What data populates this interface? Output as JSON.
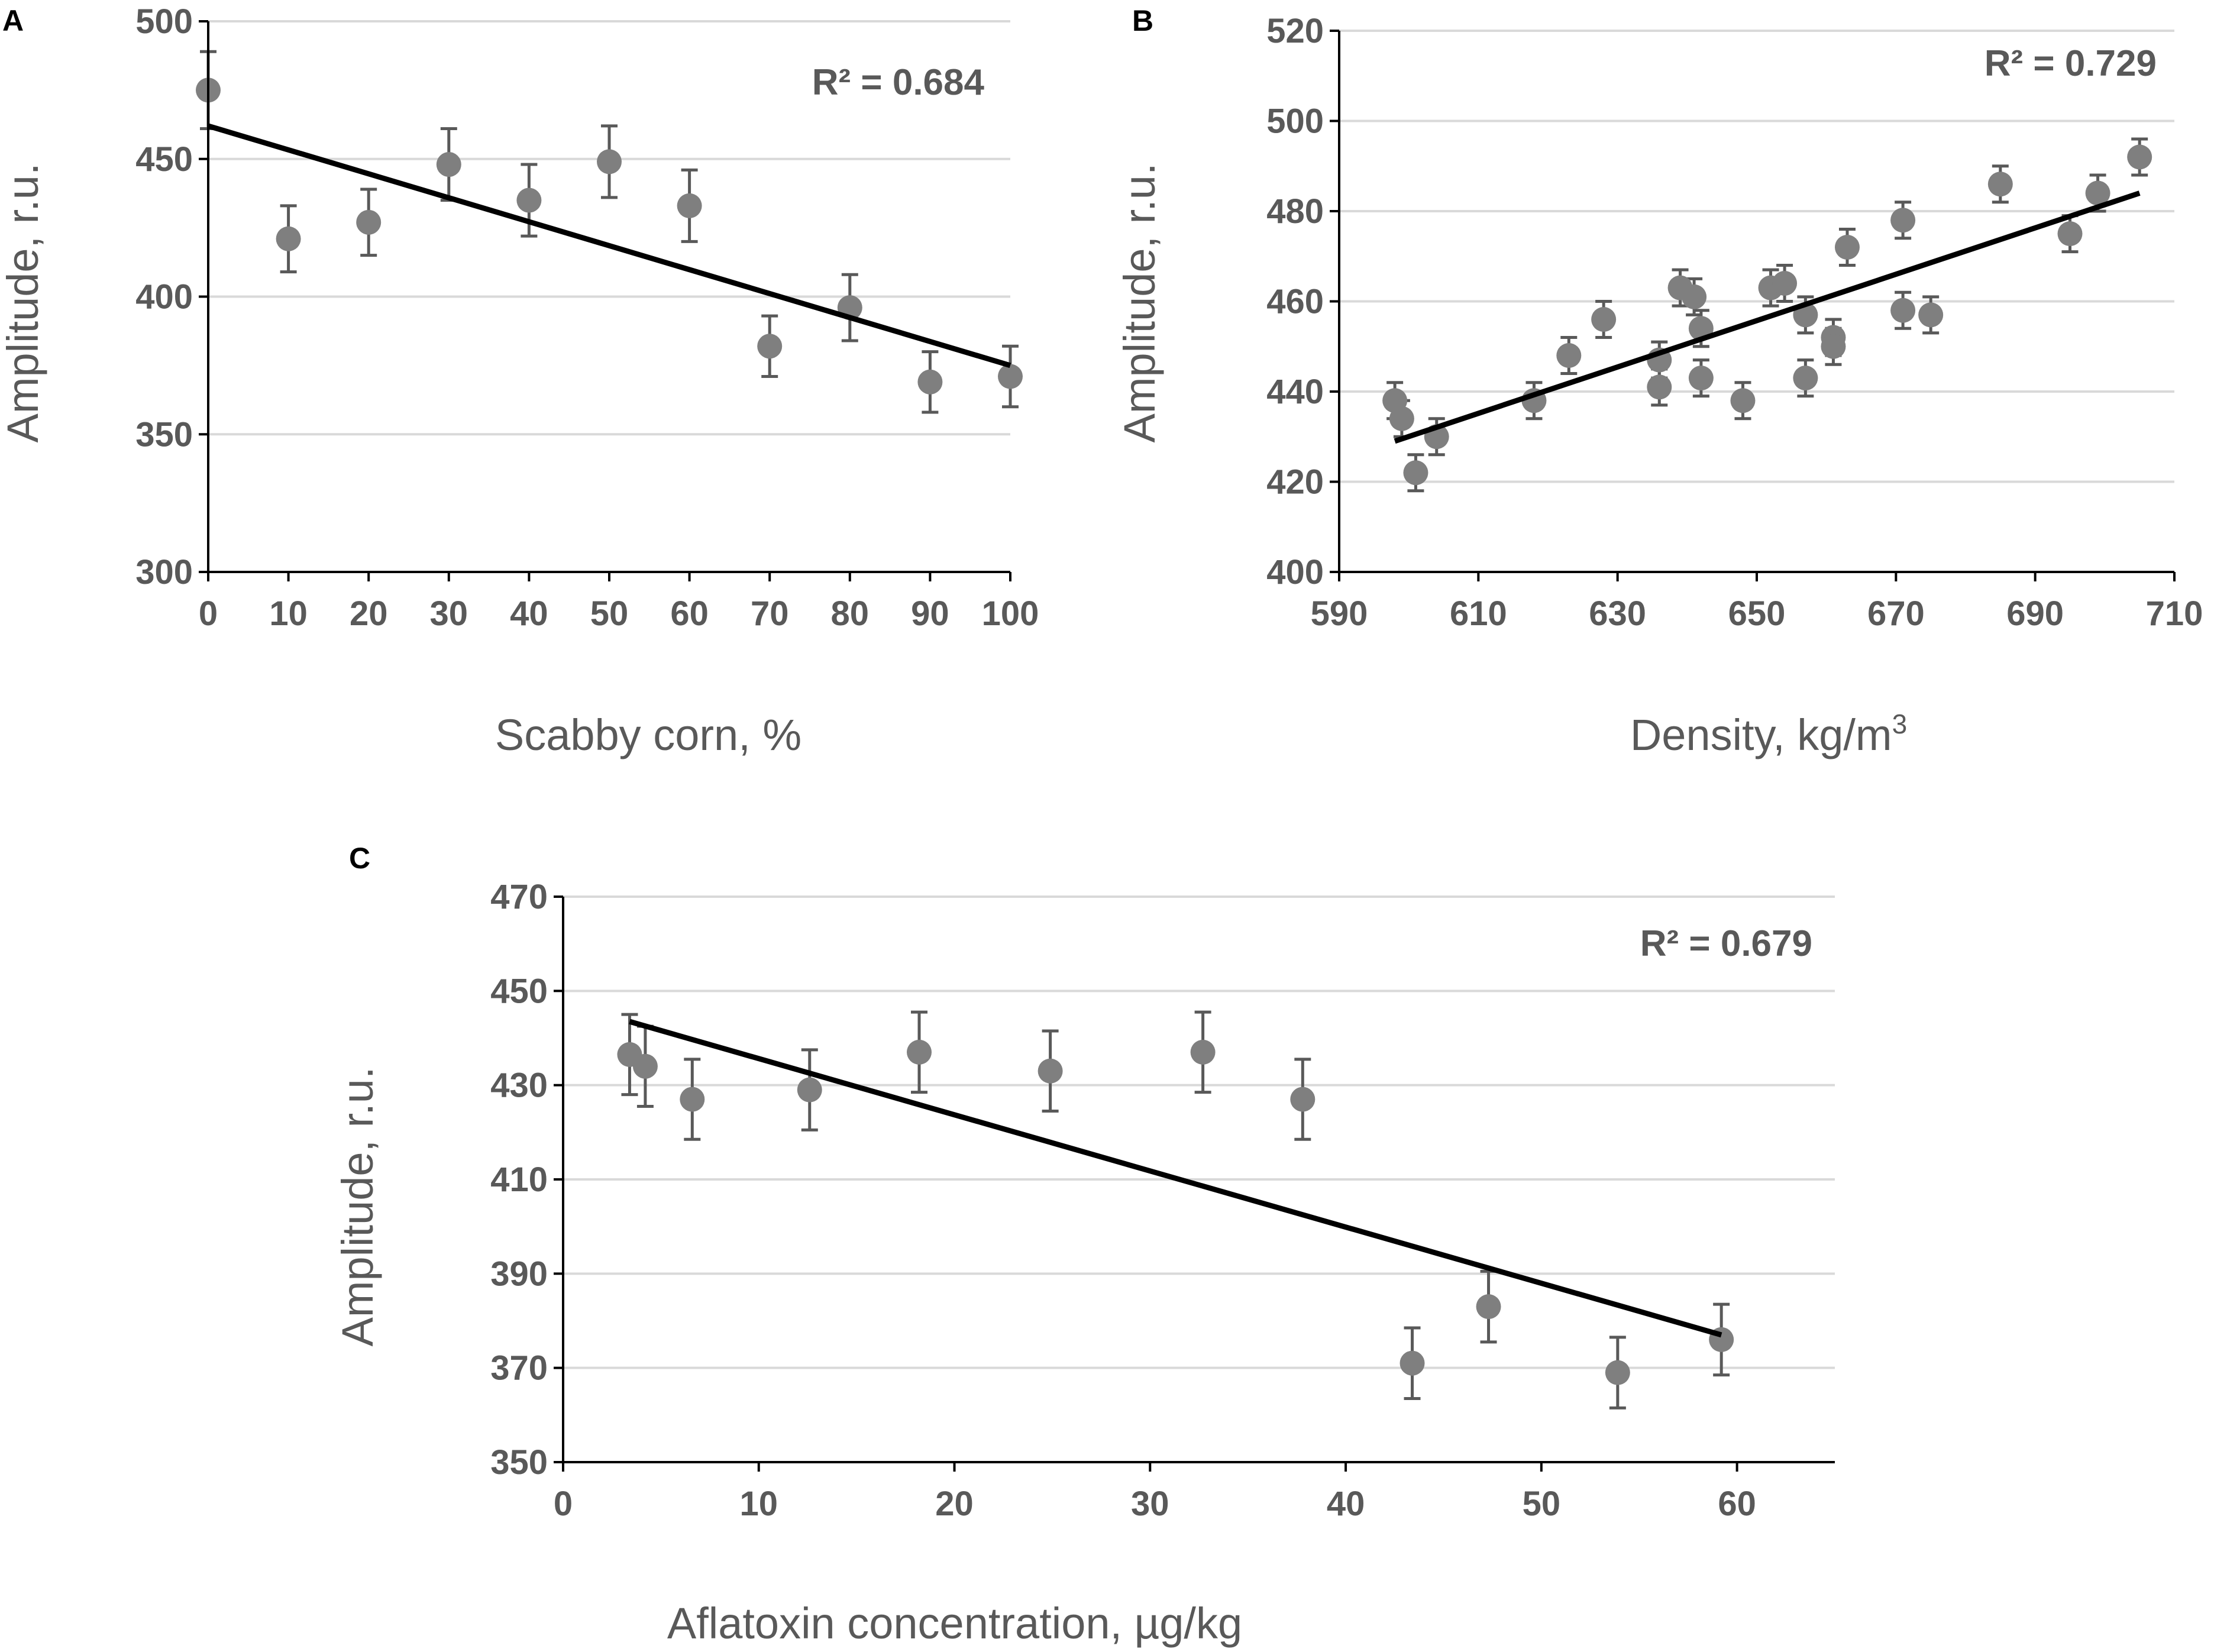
{
  "figure": {
    "colors": {
      "marker": "#7f7f7f",
      "error_bar": "#595959",
      "trendline": "#000000",
      "grid": "#d9d9d9",
      "text": "#595959"
    }
  },
  "chart_data": [
    {
      "id": "A",
      "panel_label": "A",
      "type": "scatter",
      "xlabel": "Scabby corn, %",
      "ylabel": "Amplitude, r.u.",
      "xlim": [
        0,
        100
      ],
      "ylim": [
        300,
        500
      ],
      "xticks": [
        "0",
        "10",
        "20",
        "30",
        "40",
        "50",
        "60",
        "70",
        "80",
        "90",
        "100"
      ],
      "yticks": [
        "300",
        "350",
        "400",
        "450",
        "500"
      ],
      "annotation": "R² = 0.684",
      "points": [
        {
          "x": 0,
          "y": 475,
          "err": 14
        },
        {
          "x": 10,
          "y": 421,
          "err": 12
        },
        {
          "x": 20,
          "y": 427,
          "err": 12
        },
        {
          "x": 30,
          "y": 448,
          "err": 13
        },
        {
          "x": 40,
          "y": 435,
          "err": 13
        },
        {
          "x": 50,
          "y": 449,
          "err": 13
        },
        {
          "x": 60,
          "y": 433,
          "err": 13
        },
        {
          "x": 70,
          "y": 382,
          "err": 11
        },
        {
          "x": 80,
          "y": 396,
          "err": 12
        },
        {
          "x": 90,
          "y": 369,
          "err": 11
        },
        {
          "x": 100,
          "y": 371,
          "err": 11
        }
      ],
      "trendline": {
        "x": [
          0,
          100
        ],
        "y": [
          462,
          375
        ]
      }
    },
    {
      "id": "B",
      "panel_label": "B",
      "type": "scatter",
      "xlabel": "Density, kg/m",
      "xlabel_sup": "3",
      "ylabel": "Amplitude, r.u.",
      "xlim": [
        590,
        710
      ],
      "ylim": [
        400,
        520
      ],
      "xticks": [
        "590",
        "610",
        "630",
        "650",
        "670",
        "690",
        "710"
      ],
      "yticks": [
        "400",
        "420",
        "440",
        "460",
        "480",
        "500",
        "520"
      ],
      "annotation": "R² = 0.729",
      "points": [
        {
          "x": 598,
          "y": 438,
          "err": 4
        },
        {
          "x": 599,
          "y": 434,
          "err": 4
        },
        {
          "x": 601,
          "y": 422,
          "err": 4
        },
        {
          "x": 604,
          "y": 430,
          "err": 4
        },
        {
          "x": 618,
          "y": 438,
          "err": 4
        },
        {
          "x": 623,
          "y": 448,
          "err": 4
        },
        {
          "x": 628,
          "y": 456,
          "err": 4
        },
        {
          "x": 636,
          "y": 447,
          "err": 4
        },
        {
          "x": 636,
          "y": 441,
          "err": 4
        },
        {
          "x": 639,
          "y": 463,
          "err": 4
        },
        {
          "x": 641,
          "y": 461,
          "err": 4
        },
        {
          "x": 642,
          "y": 454,
          "err": 4
        },
        {
          "x": 642,
          "y": 443,
          "err": 4
        },
        {
          "x": 648,
          "y": 438,
          "err": 4
        },
        {
          "x": 652,
          "y": 463,
          "err": 4
        },
        {
          "x": 654,
          "y": 464,
          "err": 4
        },
        {
          "x": 657,
          "y": 457,
          "err": 4
        },
        {
          "x": 657,
          "y": 443,
          "err": 4
        },
        {
          "x": 661,
          "y": 452,
          "err": 4
        },
        {
          "x": 661,
          "y": 450,
          "err": 4
        },
        {
          "x": 663,
          "y": 472,
          "err": 4
        },
        {
          "x": 671,
          "y": 478,
          "err": 4
        },
        {
          "x": 671,
          "y": 458,
          "err": 4
        },
        {
          "x": 675,
          "y": 457,
          "err": 4
        },
        {
          "x": 685,
          "y": 486,
          "err": 4
        },
        {
          "x": 695,
          "y": 475,
          "err": 4
        },
        {
          "x": 699,
          "y": 484,
          "err": 4
        },
        {
          "x": 705,
          "y": 492,
          "err": 4
        }
      ],
      "trendline": {
        "x": [
          598,
          705
        ],
        "y": [
          429,
          484
        ]
      }
    },
    {
      "id": "C",
      "panel_label": "C",
      "type": "scatter",
      "xlabel": "Aflatoxin concentration, µg/kg",
      "ylabel": "Amplitude, r.u.",
      "xlim": [
        0,
        65
      ],
      "ylim": [
        350,
        470
      ],
      "xticks": [
        "0",
        "10",
        "20",
        "30",
        "40",
        "50",
        "60"
      ],
      "yticks": [
        "350",
        "370",
        "390",
        "410",
        "430",
        "450",
        "470"
      ],
      "annotation": "R² = 0.679",
      "points": [
        {
          "x": 3.4,
          "y": 436.5,
          "err": 8.5
        },
        {
          "x": 4.2,
          "y": 434,
          "err": 8.5
        },
        {
          "x": 6.6,
          "y": 427,
          "err": 8.5
        },
        {
          "x": 12.6,
          "y": 429,
          "err": 8.5
        },
        {
          "x": 18.2,
          "y": 437,
          "err": 8.5
        },
        {
          "x": 24.9,
          "y": 433,
          "err": 8.5
        },
        {
          "x": 32.7,
          "y": 437,
          "err": 8.5
        },
        {
          "x": 37.8,
          "y": 427,
          "err": 8.5
        },
        {
          "x": 43.4,
          "y": 371,
          "err": 7.5
        },
        {
          "x": 47.3,
          "y": 383,
          "err": 7.5
        },
        {
          "x": 53.9,
          "y": 369,
          "err": 7.5
        },
        {
          "x": 59.2,
          "y": 376,
          "err": 7.5
        }
      ],
      "trendline": {
        "x": [
          3.4,
          59.2
        ],
        "y": [
          443.5,
          377
        ]
      }
    }
  ]
}
